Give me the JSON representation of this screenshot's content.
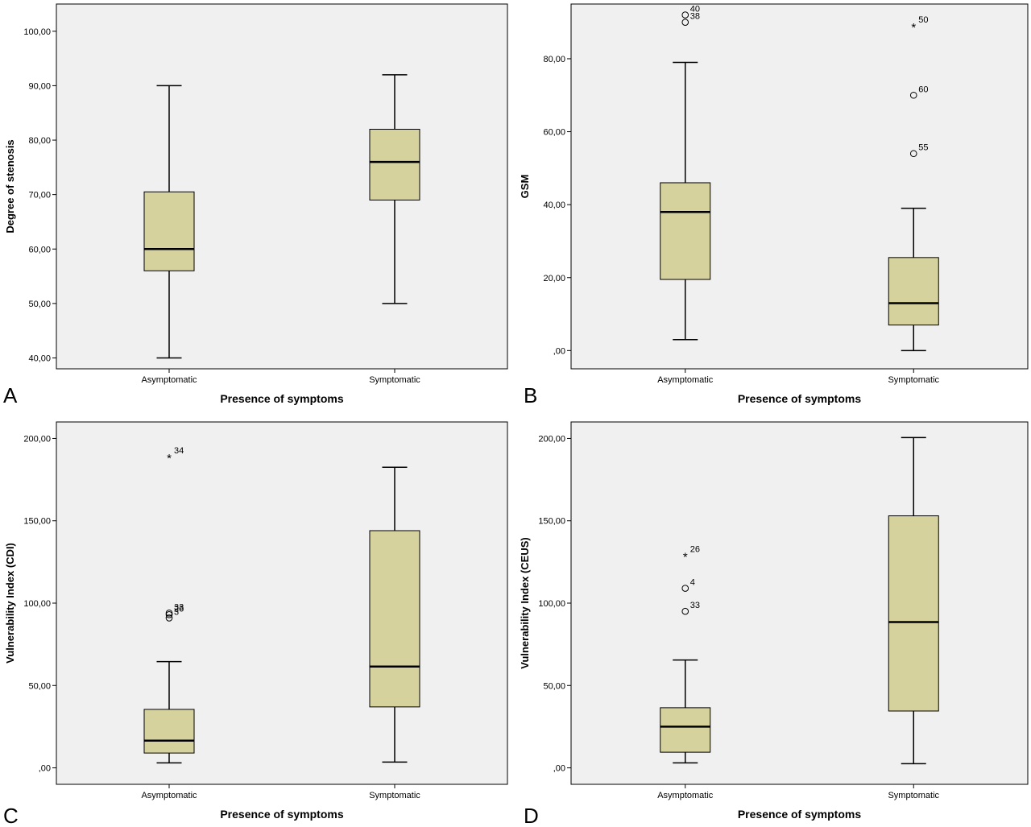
{
  "colors": {
    "plot_bg": "#f0f0f0",
    "box_fill": "#d6d29e",
    "stroke": "#000000"
  },
  "chart_data": [
    {
      "panel_letter": "A",
      "type": "boxplot",
      "xlabel": "Presence of symptoms",
      "ylabel": "Degree of stenosis",
      "ylim": [
        38.0,
        105.0
      ],
      "yticks": [
        40,
        50,
        60,
        70,
        80,
        90,
        100
      ],
      "ytick_labels": [
        "40,00",
        "50,00",
        "60,00",
        "70,00",
        "80,00",
        "90,00",
        "100,00"
      ],
      "categories": [
        "Asymptomatic",
        "Symptomatic"
      ],
      "boxes": [
        {
          "category": "Asymptomatic",
          "whisker_low": 40.0,
          "q1": 56.0,
          "median": 60.0,
          "q3": 70.5,
          "whisker_high": 90.0,
          "outliers": []
        },
        {
          "category": "Symptomatic",
          "whisker_low": 50.0,
          "q1": 69.0,
          "median": 76.0,
          "q3": 82.0,
          "whisker_high": 92.0,
          "outliers": []
        }
      ]
    },
    {
      "panel_letter": "B",
      "type": "boxplot",
      "xlabel": "Presence of symptoms",
      "ylabel": "GSM",
      "ylim": [
        -5.0,
        95.0
      ],
      "yticks": [
        0,
        20,
        40,
        60,
        80
      ],
      "ytick_labels": [
        ",00",
        "20,00",
        "40,00",
        "60,00",
        "80,00"
      ],
      "categories": [
        "Asymptomatic",
        "Symptomatic"
      ],
      "boxes": [
        {
          "category": "Asymptomatic",
          "whisker_low": 3.0,
          "q1": 19.5,
          "median": 38.0,
          "q3": 46.0,
          "whisker_high": 79.0,
          "outliers": [
            {
              "value": 92.0,
              "label": "40",
              "marker": "circle"
            },
            {
              "value": 90.0,
              "label": "38",
              "marker": "circle"
            }
          ]
        },
        {
          "category": "Symptomatic",
          "whisker_low": 0.0,
          "q1": 7.0,
          "median": 13.0,
          "q3": 25.5,
          "whisker_high": 39.0,
          "outliers": [
            {
              "value": 89.0,
              "label": "50",
              "marker": "star"
            },
            {
              "value": 70.0,
              "label": "60",
              "marker": "circle"
            },
            {
              "value": 54.0,
              "label": "55",
              "marker": "circle"
            }
          ]
        }
      ]
    },
    {
      "panel_letter": "C",
      "type": "boxplot",
      "xlabel": "Presence of symptoms",
      "ylabel": "Vulnerability Index (CDI)",
      "ylim": [
        -10.0,
        210.0
      ],
      "yticks": [
        0,
        50,
        100,
        150,
        200
      ],
      "ytick_labels": [
        ",00",
        "50,00",
        "100,00",
        "150,00",
        "200,00"
      ],
      "categories": [
        "Asymptomatic",
        "Symptomatic"
      ],
      "boxes": [
        {
          "category": "Asymptomatic",
          "whisker_low": 3.0,
          "q1": 9.0,
          "median": 16.5,
          "q3": 35.5,
          "whisker_high": 64.5,
          "outliers": [
            {
              "value": 189.0,
              "label": "34",
              "marker": "star"
            },
            {
              "value": 94.0,
              "label": "33",
              "marker": "circle"
            },
            {
              "value": 93.0,
              "label": "26",
              "marker": "circle"
            },
            {
              "value": 91.0,
              "label": "3",
              "marker": "circle"
            }
          ]
        },
        {
          "category": "Symptomatic",
          "whisker_low": 3.5,
          "q1": 37.0,
          "median": 61.5,
          "q3": 144.0,
          "whisker_high": 182.5,
          "outliers": []
        }
      ]
    },
    {
      "panel_letter": "D",
      "type": "boxplot",
      "xlabel": "Presence of symptoms",
      "ylabel": "Vulnerability Index (CEUS)",
      "ylim": [
        -10.0,
        210.0
      ],
      "yticks": [
        0,
        50,
        100,
        150,
        200
      ],
      "ytick_labels": [
        ",00",
        "50,00",
        "100,00",
        "150,00",
        "200,00"
      ],
      "categories": [
        "Asymptomatic",
        "Symptomatic"
      ],
      "boxes": [
        {
          "category": "Asymptomatic",
          "whisker_low": 3.0,
          "q1": 9.5,
          "median": 25.0,
          "q3": 36.5,
          "whisker_high": 65.5,
          "outliers": [
            {
              "value": 129.0,
              "label": "26",
              "marker": "star"
            },
            {
              "value": 109.0,
              "label": "4",
              "marker": "circle"
            },
            {
              "value": 95.0,
              "label": "33",
              "marker": "circle"
            }
          ]
        },
        {
          "category": "Symptomatic",
          "whisker_low": 2.5,
          "q1": 34.5,
          "median": 88.5,
          "q3": 153.0,
          "whisker_high": 200.5,
          "outliers": []
        }
      ]
    }
  ]
}
